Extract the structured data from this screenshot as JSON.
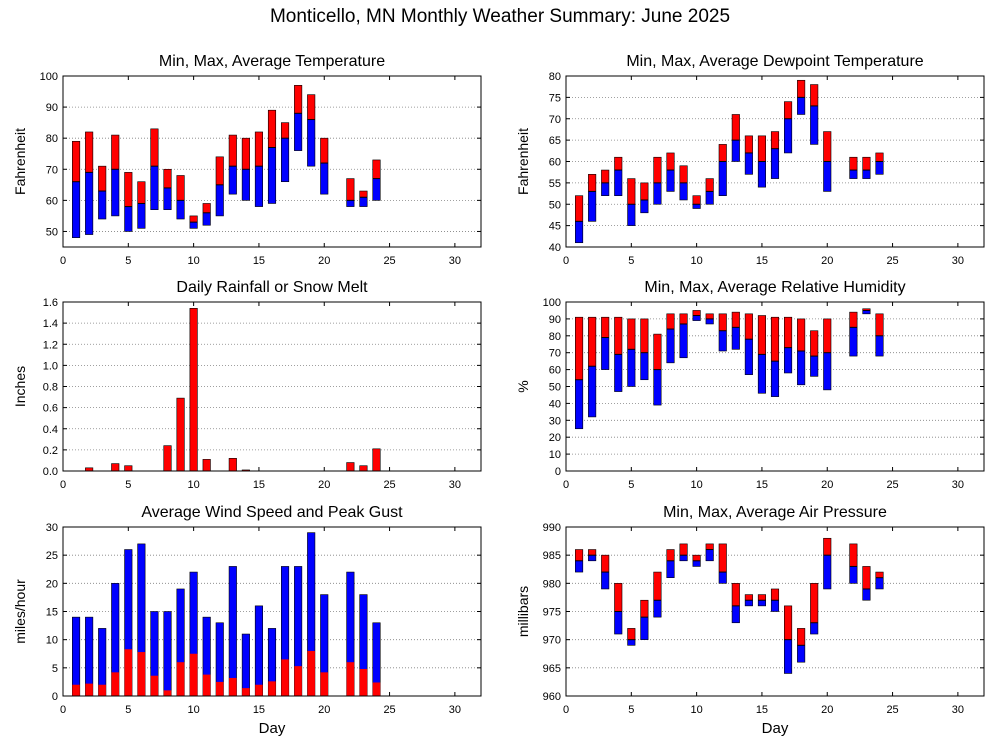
{
  "title": "Monticello, MN Monthly Weather Summary: June 2025",
  "colors": {
    "min_color": "#0000ff",
    "max_color": "#ff0000",
    "grid": "#808080",
    "frame": "#000000"
  },
  "chart_data": [
    {
      "type": "bar",
      "title": "Min, Max, Average Temperature",
      "xlabel": "",
      "ylabel": "Fahrenheit",
      "xlim": [
        0,
        32
      ],
      "ylim": [
        45,
        100
      ],
      "xticks": [
        0,
        5,
        10,
        15,
        20,
        25,
        30
      ],
      "yticks": [
        50,
        60,
        70,
        80,
        90,
        100
      ],
      "grid": true,
      "style": "range",
      "days": [
        1,
        2,
        3,
        4,
        5,
        6,
        7,
        8,
        9,
        10,
        11,
        12,
        13,
        14,
        15,
        16,
        17,
        18,
        19,
        20,
        22,
        23,
        24
      ],
      "min": [
        48,
        49,
        54,
        55,
        50,
        51,
        57,
        57,
        54,
        51,
        52,
        55,
        62,
        60,
        58,
        59,
        66,
        76,
        71,
        62,
        58,
        58,
        60
      ],
      "avg": [
        66,
        69,
        63,
        70,
        58,
        59,
        71,
        64,
        60,
        53,
        56,
        65,
        71,
        70,
        71,
        77,
        80,
        88,
        86,
        72,
        60,
        61,
        67
      ],
      "max": [
        79,
        82,
        71,
        81,
        69,
        66,
        83,
        70,
        68,
        55,
        59,
        74,
        81,
        80,
        82,
        89,
        85,
        97,
        94,
        80,
        67,
        63,
        73
      ]
    },
    {
      "type": "bar",
      "title": "Min, Max, Average Dewpoint Temperature",
      "xlabel": "",
      "ylabel": "Fahrenheit",
      "xlim": [
        0,
        32
      ],
      "ylim": [
        40,
        80
      ],
      "xticks": [
        0,
        5,
        10,
        15,
        20,
        25,
        30
      ],
      "yticks": [
        40,
        45,
        50,
        55,
        60,
        65,
        70,
        75,
        80
      ],
      "grid": true,
      "style": "range",
      "days": [
        1,
        2,
        3,
        4,
        5,
        6,
        7,
        8,
        9,
        10,
        11,
        12,
        13,
        14,
        15,
        16,
        17,
        18,
        19,
        20,
        22,
        23,
        24
      ],
      "min": [
        41,
        46,
        52,
        52,
        45,
        48,
        50,
        53,
        51,
        49,
        50,
        52,
        60,
        57,
        54,
        56,
        62,
        71,
        64,
        53,
        56,
        56,
        57
      ],
      "avg": [
        46,
        53,
        55,
        58,
        50,
        51,
        55,
        58,
        55,
        50,
        53,
        60,
        65,
        62,
        60,
        63,
        70,
        75,
        73,
        60,
        58,
        58,
        60
      ],
      "max": [
        52,
        57,
        58,
        61,
        56,
        55,
        61,
        62,
        59,
        52,
        56,
        64,
        71,
        66,
        66,
        67,
        74,
        79,
        78,
        67,
        61,
        61,
        62
      ]
    },
    {
      "type": "bar",
      "title": "Daily Rainfall or Snow Melt",
      "xlabel": "",
      "ylabel": "Inches",
      "xlim": [
        0,
        32
      ],
      "ylim": [
        0,
        1.6
      ],
      "xticks": [
        0,
        5,
        10,
        15,
        20,
        25,
        30
      ],
      "yticks": [
        0,
        0.2,
        0.4,
        0.6,
        0.8,
        1.0,
        1.2,
        1.4,
        1.6
      ],
      "ytick_labels": [
        "0.0",
        "0.2",
        "0.4",
        "0.6",
        "0.8",
        "1.0",
        "1.2",
        "1.4",
        "1.6"
      ],
      "grid": true,
      "style": "rain",
      "days": [
        2,
        4,
        5,
        8,
        9,
        10,
        11,
        13,
        14,
        22,
        23,
        24
      ],
      "values": [
        0.03,
        0.07,
        0.05,
        0.24,
        0.69,
        1.54,
        0.11,
        0.12,
        0.01,
        0.08,
        0.05,
        0.21
      ]
    },
    {
      "type": "bar",
      "title": "Min, Max, Average Relative Humidity",
      "xlabel": "",
      "ylabel": "%",
      "xlim": [
        0,
        32
      ],
      "ylim": [
        0,
        100
      ],
      "xticks": [
        0,
        5,
        10,
        15,
        20,
        25,
        30
      ],
      "yticks": [
        0,
        10,
        20,
        30,
        40,
        50,
        60,
        70,
        80,
        90,
        100
      ],
      "grid": true,
      "style": "range",
      "days": [
        1,
        2,
        3,
        4,
        5,
        6,
        7,
        8,
        9,
        10,
        11,
        12,
        13,
        14,
        15,
        16,
        17,
        18,
        19,
        20,
        22,
        23,
        24
      ],
      "min": [
        25,
        32,
        60,
        47,
        50,
        54,
        39,
        64,
        67,
        89,
        87,
        71,
        72,
        57,
        46,
        44,
        58,
        51,
        56,
        48,
        68,
        93,
        68
      ],
      "avg": [
        54,
        62,
        79,
        69,
        72,
        70,
        60,
        84,
        87,
        92,
        90,
        83,
        85,
        78,
        69,
        65,
        73,
        71,
        68,
        70,
        85,
        95,
        80
      ],
      "max": [
        91,
        91,
        91,
        91,
        90,
        90,
        81,
        93,
        93,
        95,
        93,
        93,
        94,
        93,
        92,
        91,
        91,
        90,
        83,
        90,
        94,
        96,
        93
      ]
    },
    {
      "type": "bar",
      "title": "Average Wind Speed and Peak Gust",
      "xlabel": "Day",
      "ylabel": "miles/hour",
      "xlim": [
        0,
        32
      ],
      "ylim": [
        0,
        30
      ],
      "xticks": [
        0,
        5,
        10,
        15,
        20,
        25,
        30
      ],
      "yticks": [
        0,
        5,
        10,
        15,
        20,
        25,
        30
      ],
      "grid": true,
      "style": "wind",
      "days": [
        1,
        2,
        3,
        4,
        5,
        6,
        7,
        8,
        9,
        10,
        11,
        12,
        13,
        14,
        15,
        16,
        17,
        18,
        19,
        20,
        22,
        23,
        24
      ],
      "peak_gust": [
        14,
        14,
        12,
        20,
        26,
        27,
        15,
        15,
        19,
        22,
        14,
        13,
        23,
        11,
        16,
        12,
        23,
        23,
        29,
        18,
        22,
        18,
        13
      ],
      "avg_speed": [
        2,
        2.2,
        2,
        4.2,
        8.3,
        7.8,
        3.6,
        1,
        6,
        7.5,
        3.8,
        2.5,
        3.2,
        1.4,
        2,
        2.6,
        6.5,
        5.3,
        8,
        4.2,
        6,
        4.8,
        2.4
      ]
    },
    {
      "type": "bar",
      "title": "Min, Max, Average Air Pressure",
      "xlabel": "Day",
      "ylabel": "millibars",
      "xlim": [
        0,
        32
      ],
      "ylim": [
        960,
        990
      ],
      "xticks": [
        0,
        5,
        10,
        15,
        20,
        25,
        30
      ],
      "yticks": [
        960,
        965,
        970,
        975,
        980,
        985,
        990
      ],
      "grid": true,
      "style": "range",
      "days": [
        1,
        2,
        3,
        4,
        5,
        6,
        7,
        8,
        9,
        10,
        11,
        12,
        13,
        14,
        15,
        16,
        17,
        18,
        19,
        20,
        22,
        23,
        24
      ],
      "min": [
        982,
        984,
        979,
        971,
        969,
        970,
        974,
        981,
        984,
        983,
        984,
        980,
        973,
        976,
        976,
        975,
        964,
        966,
        971,
        979,
        980,
        977,
        979
      ],
      "avg": [
        984,
        985,
        982,
        975,
        970,
        974,
        977,
        984,
        985,
        984,
        986,
        982,
        976,
        977,
        977,
        977,
        970,
        969,
        973,
        985,
        983,
        979,
        981
      ],
      "max": [
        986,
        986,
        985,
        980,
        972,
        977,
        982,
        986,
        987,
        985,
        987,
        987,
        980,
        978,
        978,
        979,
        976,
        972,
        980,
        988,
        987,
        983,
        982
      ]
    }
  ]
}
